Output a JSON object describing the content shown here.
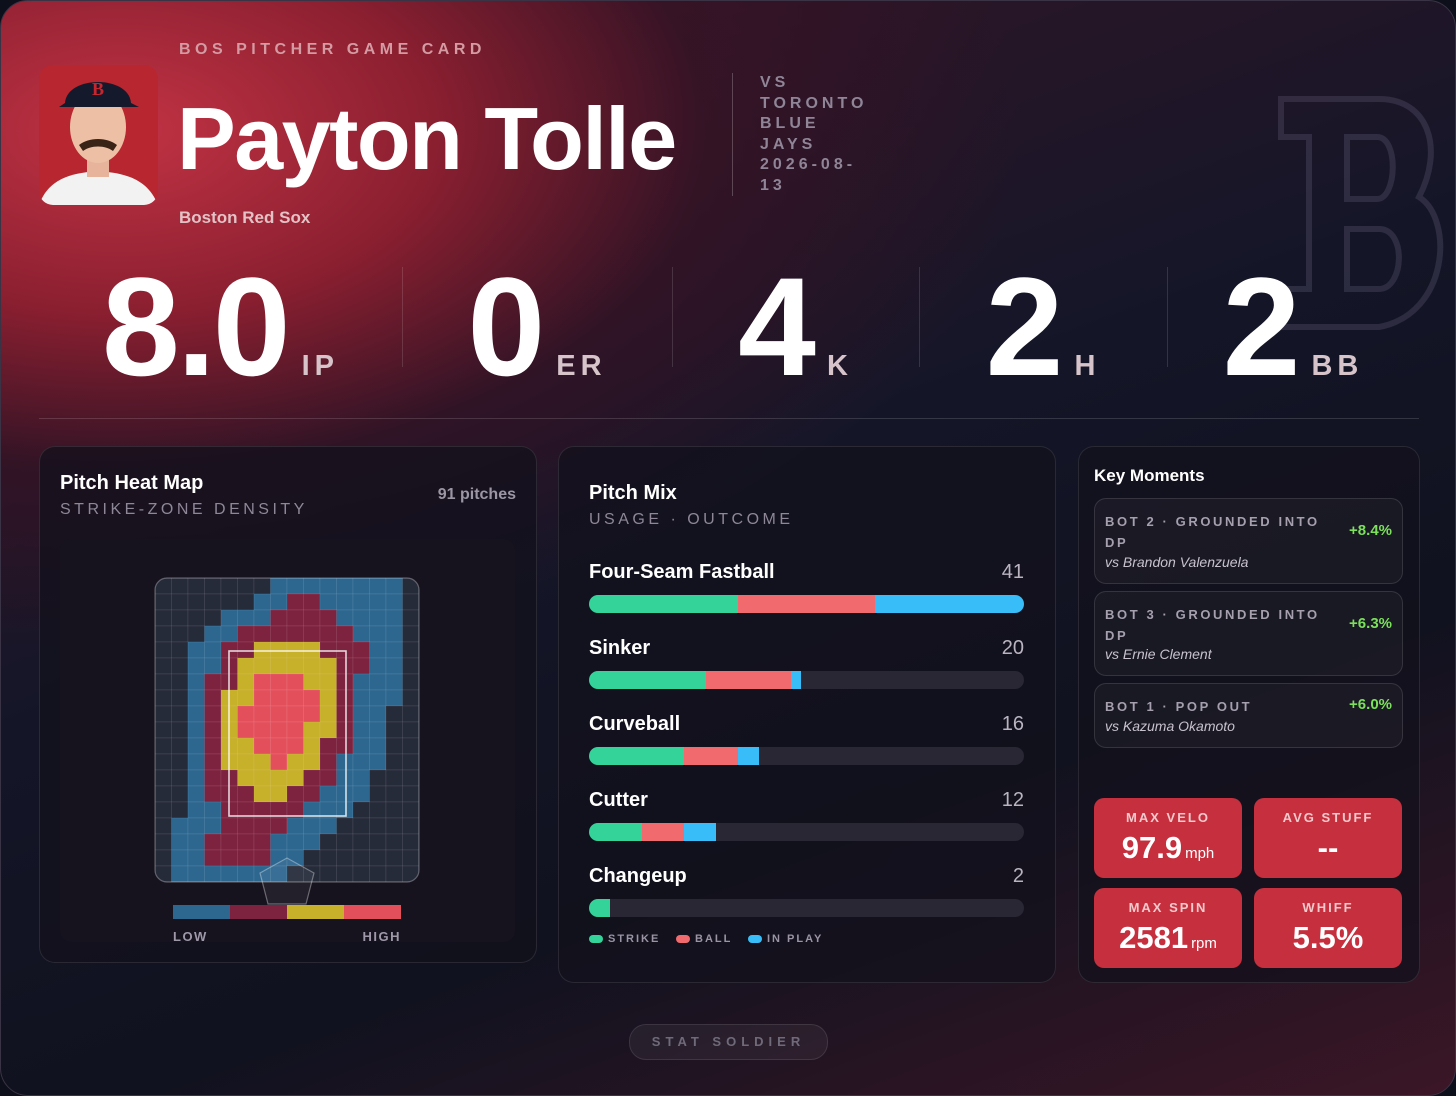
{
  "header": {
    "eyebrow": "BOS PITCHER GAME CARD",
    "name": "Payton Tolle",
    "team": "Boston Red Sox",
    "versus": "VS",
    "opponent": "TORONTO BLUE JAYS",
    "date": "2026-08-13"
  },
  "stats": [
    {
      "value": "8.0",
      "label": "IP"
    },
    {
      "value": "0",
      "label": "ER"
    },
    {
      "value": "4",
      "label": "K"
    },
    {
      "value": "2",
      "label": "H"
    },
    {
      "value": "2",
      "label": "BB"
    }
  ],
  "heat_map": {
    "title": "Pitch Heat Map",
    "subtitle": "STRIKE-ZONE DENSITY",
    "pitch_count": "91 pitches",
    "level_colors": [
      "#262b3a",
      "#2d6790",
      "#7d2340",
      "#c7b02a",
      "#e3505c"
    ],
    "density": [
      [
        0,
        0,
        0,
        0,
        0,
        0,
        0,
        1,
        1,
        1,
        1,
        1,
        1,
        1,
        1,
        0
      ],
      [
        0,
        0,
        0,
        0,
        0,
        0,
        1,
        1,
        2,
        2,
        1,
        1,
        1,
        1,
        1,
        0
      ],
      [
        0,
        0,
        0,
        0,
        1,
        1,
        1,
        2,
        2,
        2,
        2,
        1,
        1,
        1,
        1,
        0
      ],
      [
        0,
        0,
        0,
        1,
        1,
        2,
        2,
        2,
        2,
        2,
        2,
        2,
        1,
        1,
        1,
        0
      ],
      [
        0,
        0,
        1,
        1,
        2,
        2,
        3,
        3,
        3,
        3,
        2,
        2,
        2,
        1,
        1,
        0
      ],
      [
        0,
        0,
        1,
        1,
        2,
        3,
        3,
        3,
        3,
        3,
        3,
        2,
        2,
        1,
        1,
        0
      ],
      [
        0,
        0,
        1,
        2,
        2,
        3,
        4,
        4,
        4,
        3,
        3,
        2,
        1,
        1,
        1,
        0
      ],
      [
        0,
        0,
        1,
        2,
        3,
        3,
        4,
        4,
        4,
        4,
        3,
        2,
        1,
        1,
        1,
        0
      ],
      [
        0,
        0,
        1,
        2,
        3,
        4,
        4,
        4,
        4,
        4,
        3,
        2,
        1,
        1,
        0,
        0
      ],
      [
        0,
        0,
        1,
        2,
        3,
        4,
        4,
        4,
        4,
        3,
        3,
        2,
        1,
        1,
        0,
        0
      ],
      [
        0,
        0,
        1,
        2,
        3,
        3,
        4,
        4,
        4,
        3,
        2,
        2,
        1,
        1,
        0,
        0
      ],
      [
        0,
        0,
        1,
        2,
        3,
        3,
        3,
        4,
        3,
        3,
        2,
        1,
        1,
        1,
        0,
        0
      ],
      [
        0,
        0,
        1,
        2,
        2,
        3,
        3,
        3,
        3,
        2,
        2,
        1,
        1,
        0,
        0,
        0
      ],
      [
        0,
        0,
        1,
        2,
        2,
        2,
        3,
        3,
        2,
        2,
        1,
        1,
        1,
        0,
        0,
        0
      ],
      [
        0,
        0,
        1,
        1,
        2,
        2,
        2,
        2,
        2,
        1,
        1,
        1,
        0,
        0,
        0,
        0
      ],
      [
        0,
        1,
        1,
        1,
        2,
        2,
        2,
        2,
        1,
        1,
        1,
        0,
        0,
        0,
        0,
        0
      ],
      [
        0,
        1,
        1,
        2,
        2,
        2,
        2,
        1,
        1,
        1,
        0,
        0,
        0,
        0,
        0,
        0
      ],
      [
        0,
        1,
        1,
        2,
        2,
        2,
        2,
        1,
        1,
        0,
        0,
        0,
        0,
        0,
        0,
        0
      ],
      [
        0,
        1,
        1,
        1,
        1,
        1,
        1,
        1,
        0,
        0,
        0,
        0,
        0,
        0,
        0,
        0
      ]
    ],
    "legend_low": "LOW",
    "legend_high": "HIGH"
  },
  "pitch_mix": {
    "title": "Pitch Mix",
    "subtitle": "USAGE · OUTCOME",
    "outcomes": [
      {
        "name": "STRIKE",
        "color": "#34d39a"
      },
      {
        "name": "BALL",
        "color": "#f06a6e"
      },
      {
        "name": "IN PLAY",
        "color": "#38bdf8"
      }
    ],
    "pitches": [
      {
        "name": "Four-Seam Fastball",
        "count": 41,
        "outcomes": [
          14,
          13,
          14
        ]
      },
      {
        "name": "Sinker",
        "count": 20,
        "outcomes": [
          11,
          8,
          1
        ]
      },
      {
        "name": "Curveball",
        "count": 16,
        "outcomes": [
          9,
          5,
          2
        ]
      },
      {
        "name": "Cutter",
        "count": 12,
        "outcomes": [
          5,
          4,
          3
        ]
      },
      {
        "name": "Changeup",
        "count": 2,
        "outcomes": [
          2,
          0,
          0
        ]
      }
    ]
  },
  "key_moments": {
    "title": "Key Moments",
    "items": [
      {
        "situation": "BOT 2 · GROUNDED INTO DP",
        "delta": "+8.4%",
        "batter": "vs Brandon Valenzuela"
      },
      {
        "situation": "BOT 3 · GROUNDED INTO DP",
        "delta": "+6.3%",
        "batter": "vs Ernie Clement"
      },
      {
        "situation": "BOT 1 · POP OUT",
        "delta": "+6.0%",
        "batter": "vs Kazuma Okamoto"
      }
    ]
  },
  "metrics": [
    {
      "label": "MAX VELO",
      "value": "97.9",
      "unit": "mph"
    },
    {
      "label": "AVG STUFF",
      "value": "--"
    },
    {
      "label": "MAX SPIN",
      "value": "2581",
      "unit": "rpm"
    },
    {
      "label": "WHIFF",
      "value": "5.5%"
    }
  ],
  "footer": "STAT SOLDIER"
}
